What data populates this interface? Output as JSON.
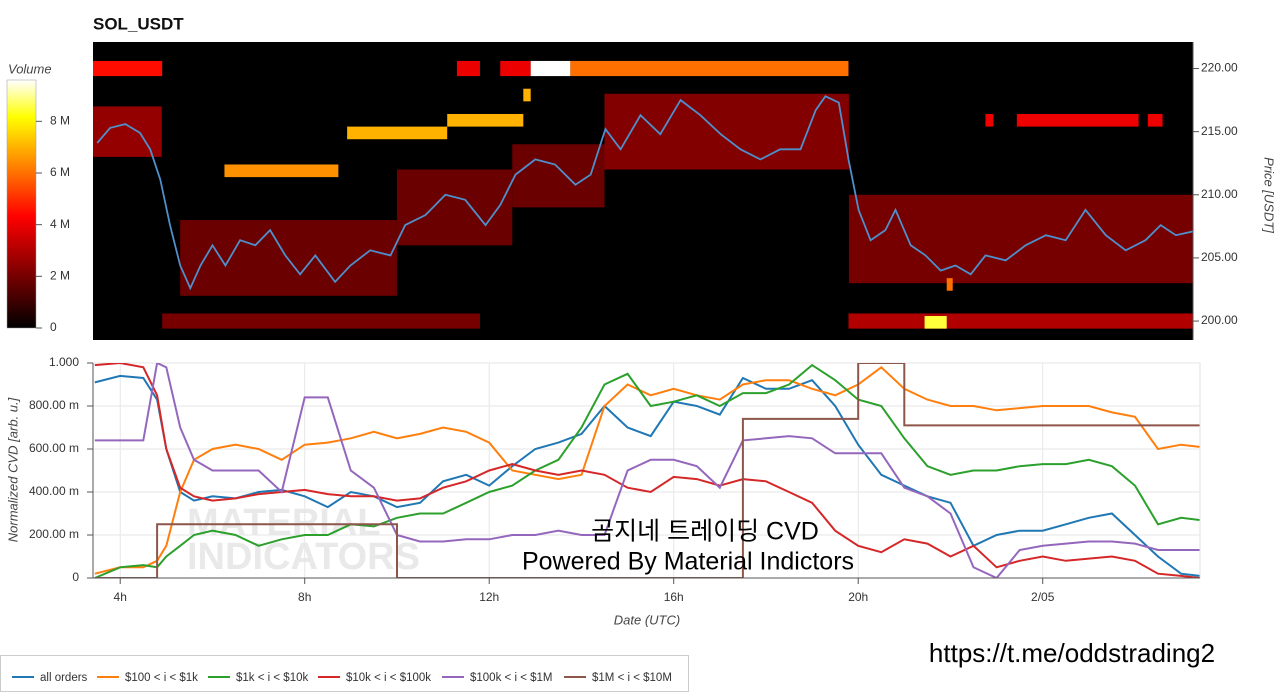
{
  "chart_data": [
    {
      "type": "heatmap",
      "title": "SOL_USDT",
      "y_label": "Price [USDT]",
      "xlim": [
        3.41,
        27.26
      ],
      "ylim": [
        198.5,
        222.1
      ],
      "yticks": [
        {
          "value": 200,
          "label": "200.00"
        },
        {
          "value": 205,
          "label": "205.00"
        },
        {
          "value": 210,
          "label": "210.00"
        },
        {
          "value": 215,
          "label": "215.00"
        },
        {
          "value": 220,
          "label": "220.00"
        }
      ],
      "colorbar": {
        "title": "Volume",
        "zlim": [
          0,
          9600000
        ],
        "ticks": [
          0,
          {
            "value": 2000000,
            "label": "2 M"
          },
          {
            "value": 4000000,
            "label": "4 M"
          },
          {
            "value": 6000000,
            "label": "6 M"
          },
          {
            "value": 8000000,
            "label": "8 M"
          }
        ]
      },
      "cells": [
        [
          3.41,
          4.9,
          213,
          217,
          2500000
        ],
        [
          5.3,
          10,
          202,
          208,
          1800000
        ],
        [
          10,
          12.5,
          206,
          212,
          1800000
        ],
        [
          12.5,
          14.5,
          209,
          214,
          1800000
        ],
        [
          14.5,
          19.8,
          212,
          218,
          2200000
        ],
        [
          19.8,
          27.26,
          203,
          210,
          2000000
        ],
        [
          4.91,
          11.8,
          199.4,
          200.6,
          2000000
        ],
        [
          19.79,
          27.26,
          199.4,
          200.6,
          3000000
        ],
        [
          3.41,
          4.91,
          219.4,
          220.6,
          4500000
        ],
        [
          11.3,
          11.8,
          219.4,
          220.6,
          4000000
        ],
        [
          12.24,
          12.9,
          219.4,
          220.6,
          4000000
        ],
        [
          12.9,
          13.76,
          219.4,
          220.6,
          9600000
        ],
        [
          13.76,
          19.79,
          219.4,
          220.6,
          6000000
        ],
        [
          6.26,
          8.73,
          211.4,
          212.4,
          6500000
        ],
        [
          8.92,
          11.09,
          214.4,
          215.4,
          7000000
        ],
        [
          11.09,
          12.74,
          215.4,
          216.4,
          7000000
        ],
        [
          12.74,
          12.9,
          217.4,
          218.4,
          7000000
        ],
        [
          21.44,
          21.92,
          199.4,
          200.4,
          8500000
        ],
        [
          21.92,
          22.05,
          202.4,
          203.4,
          6000000
        ],
        [
          22.76,
          22.93,
          215.4,
          216.4,
          4000000
        ],
        [
          23.44,
          26.08,
          215.4,
          216.4,
          4000000
        ],
        [
          26.28,
          26.6,
          215.4,
          216.4,
          4000000
        ]
      ],
      "price": {
        "color": "#4f8fcb",
        "x": [
          3.5,
          3.78,
          4.11,
          4.43,
          4.65,
          4.87,
          5.08,
          5.3,
          5.52,
          5.74,
          6.0,
          6.28,
          6.6,
          6.93,
          7.25,
          7.58,
          7.9,
          8.23,
          8.66,
          8.99,
          9.42,
          9.86,
          10.18,
          10.62,
          11.05,
          11.48,
          11.92,
          12.24,
          12.57,
          13.0,
          13.43,
          13.87,
          14.2,
          14.52,
          14.85,
          15.28,
          15.71,
          16.15,
          16.58,
          17.02,
          17.45,
          17.88,
          18.31,
          18.75,
          19.08,
          19.29,
          19.58,
          19.79,
          20.01,
          20.27,
          20.59,
          20.81,
          21.14,
          21.46,
          21.79,
          22.11,
          22.44,
          22.76,
          23.2,
          23.63,
          24.07,
          24.5,
          24.93,
          25.37,
          25.8,
          26.23,
          26.56,
          26.89,
          27.26
        ],
        "values": [
          214.1,
          215.3,
          215.6,
          214.9,
          213.6,
          211.2,
          207.6,
          204.4,
          202.6,
          204.4,
          206.0,
          204.4,
          206.4,
          206.0,
          207.2,
          205.2,
          203.7,
          205.2,
          203.1,
          204.4,
          205.6,
          205.2,
          207.6,
          208.4,
          210.0,
          209.6,
          207.6,
          209.2,
          211.6,
          212.8,
          212.4,
          210.8,
          211.6,
          215.2,
          213.6,
          216.3,
          214.8,
          217.5,
          216.3,
          214.8,
          213.6,
          212.8,
          213.6,
          213.6,
          216.7,
          217.8,
          217.3,
          212.8,
          208.8,
          206.4,
          207.2,
          208.8,
          206.0,
          205.2,
          204.0,
          204.4,
          203.7,
          205.2,
          204.8,
          206.0,
          206.8,
          206.4,
          208.8,
          206.8,
          205.6,
          206.4,
          207.6,
          206.8,
          207.1
        ]
      }
    },
    {
      "type": "line",
      "x_label": "Date (UTC)",
      "y_label": "Normalized CVD [arb. u.]",
      "xlim": [
        3.41,
        27.41
      ],
      "ylim": [
        0,
        1
      ],
      "xticks": [
        {
          "value": 4,
          "label": "4h"
        },
        {
          "value": 8,
          "label": "8h"
        },
        {
          "value": 12,
          "label": "12h"
        },
        {
          "value": 16,
          "label": "16h"
        },
        {
          "value": 20,
          "label": "20h"
        },
        {
          "value": 24,
          "label": "2/05"
        }
      ],
      "yticks": [
        0,
        {
          "value": 0.2,
          "label": "200.00 m"
        },
        {
          "value": 0.4,
          "label": "400.00 m"
        },
        {
          "value": 0.6,
          "label": "600.00 m"
        },
        {
          "value": 0.8,
          "label": "800.00 m"
        },
        {
          "value": 1,
          "label": "1.000"
        }
      ],
      "grid": true,
      "legend": "bottom",
      "x": [
        3.45,
        4,
        4.5,
        4.8,
        5,
        5.3,
        5.6,
        6,
        6.5,
        7,
        7.5,
        8,
        8.5,
        9,
        9.5,
        10,
        10.5,
        11,
        11.5,
        12,
        12.5,
        13,
        13.5,
        14,
        14.5,
        15,
        15.5,
        16,
        16.5,
        17,
        17.5,
        18,
        18.5,
        19,
        19.5,
        20,
        20.5,
        21,
        21.5,
        22,
        22.5,
        23,
        23.5,
        24,
        24.5,
        25,
        25.5,
        26,
        26.5,
        27,
        27.4
      ],
      "series": [
        {
          "name": "all orders",
          "color": "#1f77b4",
          "values": [
            0.91,
            0.94,
            0.93,
            0.83,
            0.6,
            0.4,
            0.36,
            0.38,
            0.37,
            0.4,
            0.41,
            0.38,
            0.33,
            0.4,
            0.38,
            0.33,
            0.35,
            0.45,
            0.48,
            0.43,
            0.52,
            0.6,
            0.63,
            0.67,
            0.8,
            0.7,
            0.66,
            0.82,
            0.8,
            0.76,
            0.93,
            0.88,
            0.88,
            0.92,
            0.8,
            0.62,
            0.48,
            0.43,
            0.38,
            0.35,
            0.15,
            0.2,
            0.22,
            0.22,
            0.25,
            0.28,
            0.3,
            0.2,
            0.1,
            0.02,
            0.01
          ]
        },
        {
          "name": "$100 < i < $1k",
          "color": "#ff7f0e",
          "values": [
            0.02,
            0.05,
            0.05,
            0.08,
            0.15,
            0.4,
            0.55,
            0.6,
            0.62,
            0.6,
            0.55,
            0.62,
            0.63,
            0.65,
            0.68,
            0.65,
            0.67,
            0.7,
            0.68,
            0.63,
            0.5,
            0.48,
            0.46,
            0.48,
            0.8,
            0.9,
            0.85,
            0.88,
            0.85,
            0.83,
            0.9,
            0.92,
            0.92,
            0.88,
            0.85,
            0.9,
            0.98,
            0.88,
            0.83,
            0.8,
            0.8,
            0.78,
            0.79,
            0.8,
            0.8,
            0.8,
            0.77,
            0.75,
            0.6,
            0.62,
            0.61
          ]
        },
        {
          "name": "$1k < i < $10k",
          "color": "#2ca02c",
          "values": [
            0.0,
            0.05,
            0.06,
            0.05,
            0.1,
            0.15,
            0.2,
            0.22,
            0.2,
            0.15,
            0.18,
            0.2,
            0.2,
            0.25,
            0.24,
            0.28,
            0.3,
            0.3,
            0.35,
            0.4,
            0.43,
            0.5,
            0.55,
            0.7,
            0.9,
            0.95,
            0.8,
            0.82,
            0.85,
            0.8,
            0.86,
            0.86,
            0.9,
            0.99,
            0.92,
            0.83,
            0.8,
            0.65,
            0.52,
            0.48,
            0.5,
            0.5,
            0.52,
            0.53,
            0.53,
            0.55,
            0.52,
            0.43,
            0.25,
            0.28,
            0.27
          ]
        },
        {
          "name": "$10k < i < $100k",
          "color": "#d62728",
          "values": [
            0.99,
            1.0,
            0.98,
            0.85,
            0.6,
            0.42,
            0.38,
            0.36,
            0.37,
            0.39,
            0.4,
            0.41,
            0.39,
            0.38,
            0.38,
            0.36,
            0.37,
            0.42,
            0.45,
            0.5,
            0.53,
            0.5,
            0.48,
            0.5,
            0.48,
            0.42,
            0.4,
            0.47,
            0.46,
            0.43,
            0.46,
            0.45,
            0.4,
            0.35,
            0.22,
            0.15,
            0.12,
            0.18,
            0.16,
            0.1,
            0.15,
            0.05,
            0.08,
            0.1,
            0.08,
            0.09,
            0.1,
            0.08,
            0.02,
            0.01,
            0.0
          ]
        },
        {
          "name": "$100k < i < $1M",
          "color": "#9467bd",
          "values": [
            0.64,
            0.64,
            0.64,
            1.0,
            0.98,
            0.7,
            0.55,
            0.5,
            0.5,
            0.5,
            0.4,
            0.84,
            0.84,
            0.5,
            0.42,
            0.2,
            0.17,
            0.17,
            0.18,
            0.18,
            0.2,
            0.2,
            0.22,
            0.2,
            0.2,
            0.5,
            0.55,
            0.55,
            0.52,
            0.42,
            0.64,
            0.65,
            0.66,
            0.65,
            0.58,
            0.58,
            0.58,
            0.42,
            0.38,
            0.3,
            0.05,
            0.0,
            0.13,
            0.15,
            0.16,
            0.17,
            0.17,
            0.16,
            0.13,
            0.13,
            0.13
          ]
        },
        {
          "name": "$1M < i < $10M",
          "color": "#8c564b",
          "step": true,
          "values": [
            0.0,
            0.0,
            0.0,
            0.25,
            0.25,
            0.25,
            0.25,
            0.25,
            0.25,
            0.25,
            0.25,
            0.25,
            0.25,
            0.25,
            0.25,
            0.0,
            0.0,
            0.0,
            0.0,
            0.0,
            0.0,
            0.0,
            0.0,
            0.0,
            0.0,
            0.0,
            0.0,
            0.0,
            0.0,
            0.0,
            0.74,
            0.74,
            0.74,
            0.74,
            0.74,
            1.0,
            1.0,
            0.71,
            0.71,
            0.71,
            0.71,
            0.71,
            0.71,
            0.71,
            0.71,
            0.71,
            0.71,
            0.71,
            0.71,
            0.71,
            0.71
          ]
        }
      ],
      "annotations": [
        "곰지네 트레이딩 CVD",
        "Powered By Material Indictors"
      ],
      "watermark": [
        "MATERIAL",
        "INDICATORS"
      ]
    }
  ],
  "link": "https://t.me/oddstrading2"
}
